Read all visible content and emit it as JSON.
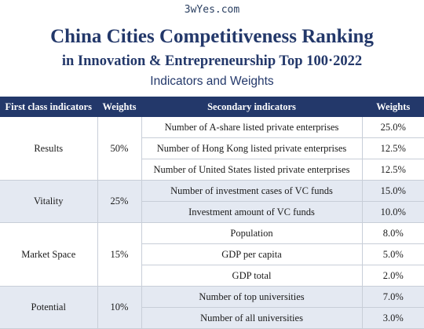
{
  "watermark": "3wYes.com",
  "title_line1": "China Cities Competitiveness Ranking",
  "title_line2": "in Innovation & Entrepreneurship Top 100·2022",
  "subtitle": "Indicators and Weights",
  "colors": {
    "header_bg": "#23386a",
    "title": "#23386a",
    "shaded_group": "#e4e9f2",
    "border": "#c8ced8"
  },
  "table": {
    "headers": [
      "First class indicators",
      "Weights",
      "Secondary indicators",
      "Weights"
    ],
    "groups": [
      {
        "indicator": "Results",
        "weight": "50%",
        "rows": [
          {
            "secondary": "Number of A-share listed private enterprises",
            "weight": "25.0%"
          },
          {
            "secondary": "Number of Hong Kong listed private enterprises",
            "weight": "12.5%"
          },
          {
            "secondary": "Number of United States listed private enterprises",
            "weight": "12.5%"
          }
        ]
      },
      {
        "indicator": "Vitality",
        "weight": "25%",
        "rows": [
          {
            "secondary": "Number of investment cases of VC funds",
            "weight": "15.0%"
          },
          {
            "secondary": "Investment amount of VC funds",
            "weight": "10.0%"
          }
        ]
      },
      {
        "indicator": "Market Space",
        "weight": "15%",
        "rows": [
          {
            "secondary": "Population",
            "weight": "8.0%"
          },
          {
            "secondary": "GDP per capita",
            "weight": "5.0%"
          },
          {
            "secondary": "GDP total",
            "weight": "2.0%"
          }
        ]
      },
      {
        "indicator": "Potential",
        "weight": "10%",
        "rows": [
          {
            "secondary": "Number of top universities",
            "weight": "7.0%"
          },
          {
            "secondary": "Number of all universities",
            "weight": "3.0%"
          }
        ]
      }
    ]
  }
}
